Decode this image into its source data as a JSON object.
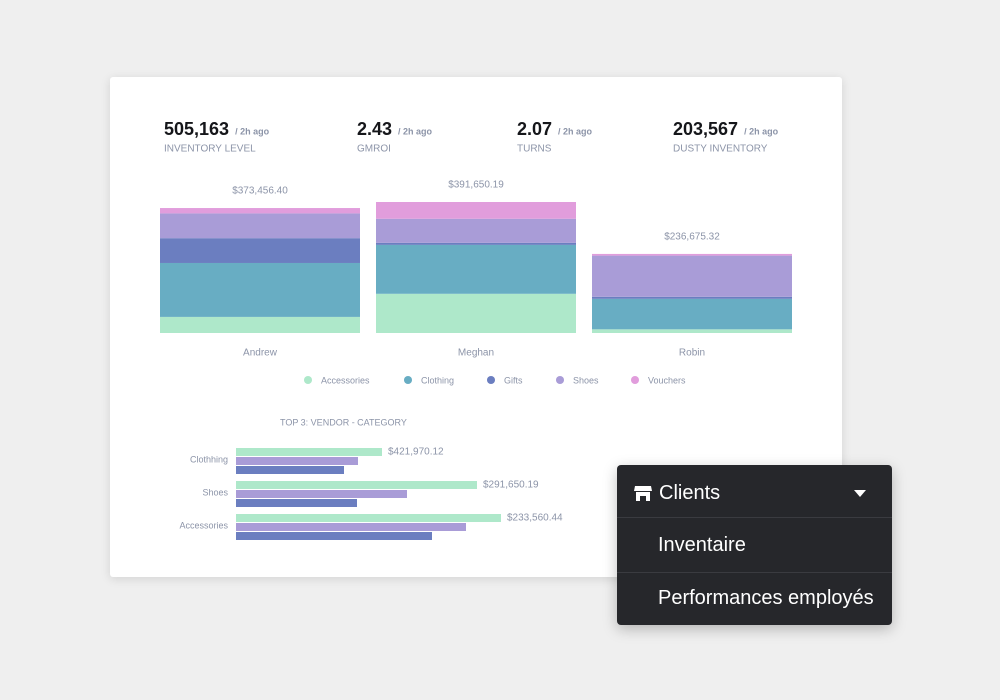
{
  "kpis": [
    {
      "value": "505,163",
      "note": "/ 2h ago",
      "label": "INVENTORY LEVEL"
    },
    {
      "value": "2.43",
      "note": "/ 2h ago",
      "label": "GMROI"
    },
    {
      "value": "2.07",
      "note": "/ 2h ago",
      "label": "TURNS"
    },
    {
      "value": "203,567",
      "note": "/ 2h ago",
      "label": "DUSTY INVENTORY"
    }
  ],
  "chart_data": [
    {
      "type": "stacked-bar",
      "categories": [
        "Andrew",
        "Meghan",
        "Robin"
      ],
      "total_labels": [
        "$373,456.40",
        "$391,650.19",
        "$236,675.32"
      ],
      "series": [
        {
          "name": "Accessories",
          "color": "#aee8ca",
          "values": [
            48000,
            117000,
            11000
          ]
        },
        {
          "name": "Clothing",
          "color": "#68adc3",
          "values": [
            161000,
            146000,
            91000
          ]
        },
        {
          "name": "Gifts",
          "color": "#6b7ec0",
          "values": [
            74000,
            6000,
            6000
          ]
        },
        {
          "name": "Shoes",
          "color": "#a99cd7",
          "values": [
            74000,
            72000,
            123000
          ]
        },
        {
          "name": "Vouchers",
          "color": "#e19ddc",
          "values": [
            16000,
            50000,
            5000
          ]
        }
      ]
    },
    {
      "type": "hbar",
      "title": "TOP 3: VENDOR - CATEGORY",
      "categories": [
        "Clothhing",
        "Shoes",
        "Accessories"
      ],
      "labels": [
        "$421,970.12",
        "$291,650.19",
        "$233,560.44"
      ],
      "series": [
        {
          "color": "#aee8ca",
          "values": [
            146000,
            241000,
            265000
          ]
        },
        {
          "color": "#a99cd7",
          "values": [
            122000,
            171000,
            230000
          ]
        },
        {
          "color": "#6b7ec0",
          "values": [
            108000,
            121000,
            196000
          ]
        }
      ]
    }
  ],
  "menu": {
    "header": "Clients",
    "items": [
      "Inventaire",
      "Performances employés"
    ]
  }
}
